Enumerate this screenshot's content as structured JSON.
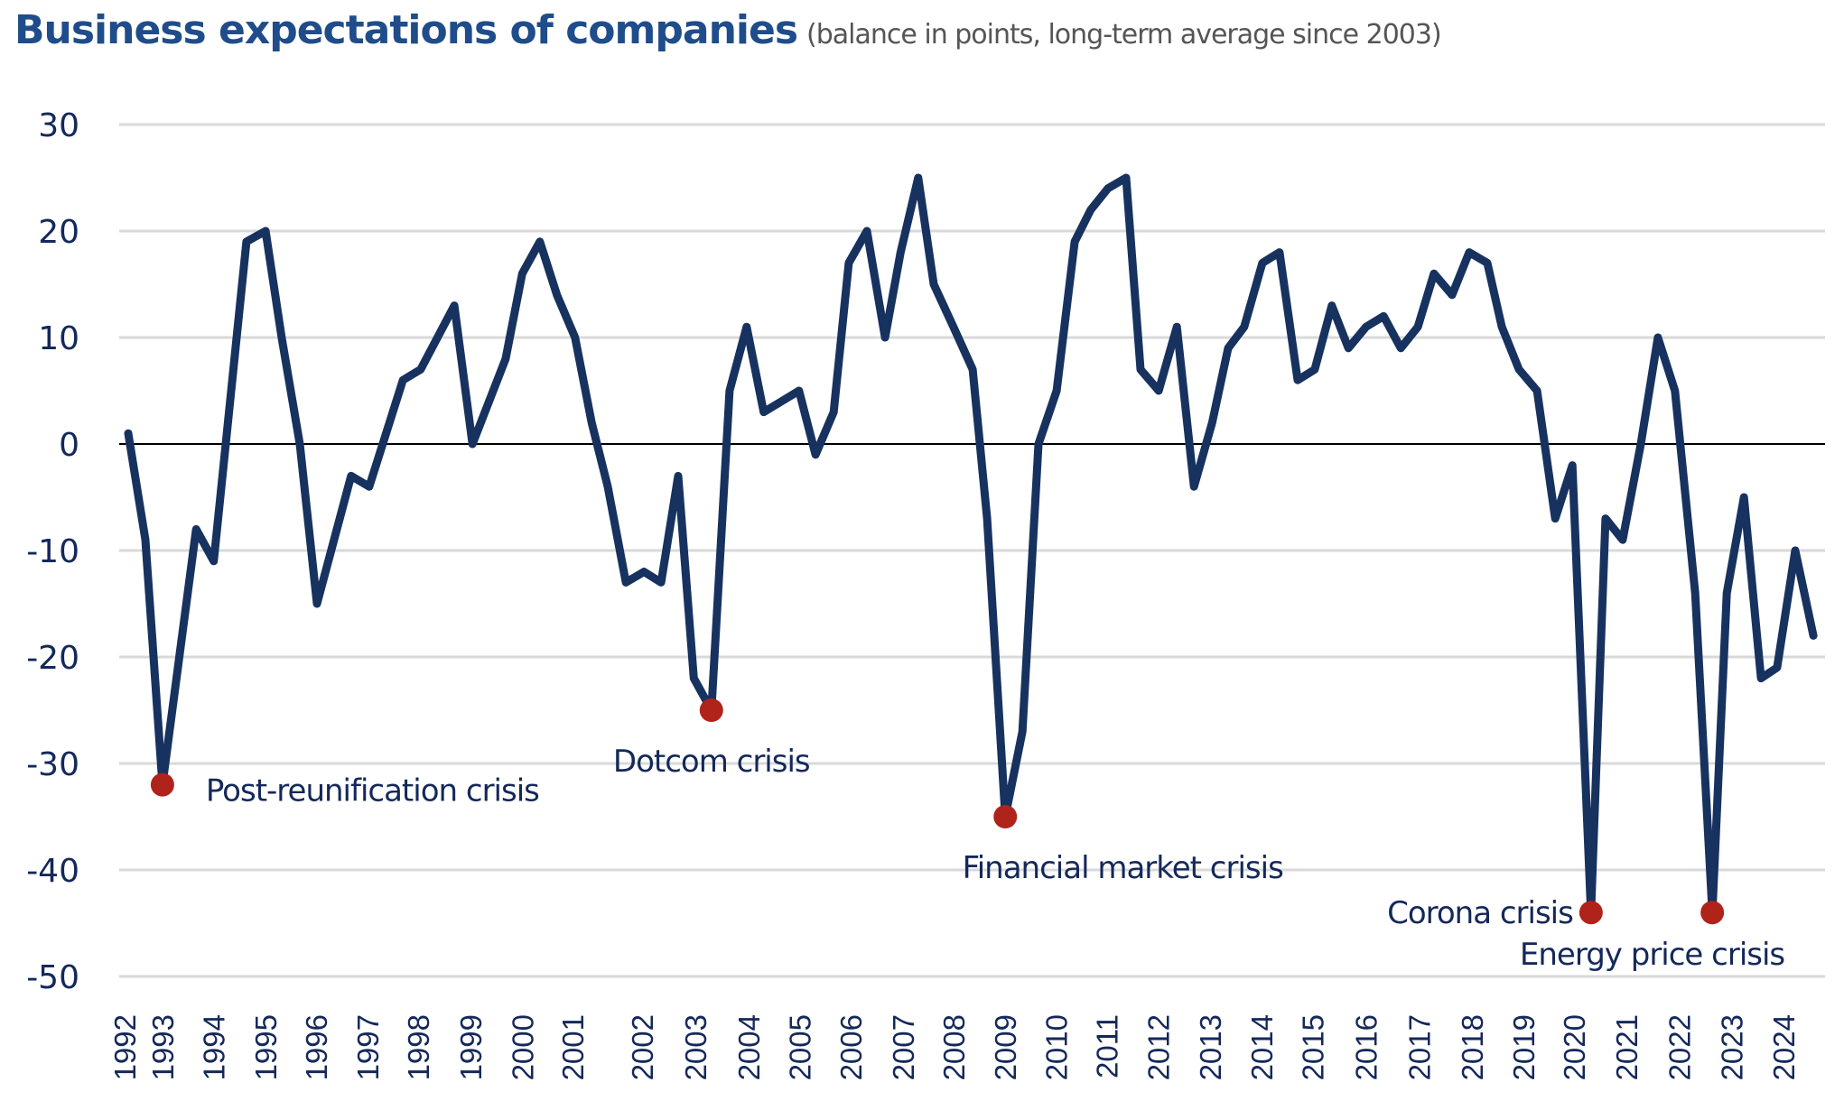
{
  "chart_data": {
    "type": "line",
    "title": "Business expectations of companies",
    "subtitle": "(balance in points, long-term average since 2003)",
    "xlabel": "",
    "ylabel": "",
    "ylim": [
      -50,
      30
    ],
    "yticks": [
      30,
      20,
      10,
      0,
      -10,
      -20,
      -30,
      -40,
      -50
    ],
    "grid": true,
    "legend": "none",
    "colors": {
      "line": "#17325f",
      "marker": "#b0231a",
      "grid": "#d9d9d9",
      "zero_line": "#000000",
      "title": "#1f4c8a",
      "text": "#14285a"
    },
    "xticks": [
      {
        "label": "1992",
        "t": 1992.0
      },
      {
        "label": "1993",
        "t": 1992.73
      },
      {
        "label": "1994",
        "t": 1993.72
      },
      {
        "label": "1995",
        "t": 1994.72
      },
      {
        "label": "1996",
        "t": 1995.69
      },
      {
        "label": "1997",
        "t": 1996.69
      },
      {
        "label": "1998",
        "t": 1997.66
      },
      {
        "label": "1999",
        "t": 1998.67
      },
      {
        "label": "2000",
        "t": 1999.67
      },
      {
        "label": "2001",
        "t": 2000.64
      },
      {
        "label": "2002",
        "t": 2001.98
      },
      {
        "label": "2003",
        "t": 2003.01
      },
      {
        "label": "2004",
        "t": 2004.04
      },
      {
        "label": "2005",
        "t": 2005.02
      },
      {
        "label": "2006",
        "t": 2006.01
      },
      {
        "label": "2007",
        "t": 2007.02
      },
      {
        "label": "2008",
        "t": 2007.99
      },
      {
        "label": "2009",
        "t": 2008.99
      },
      {
        "label": "2010",
        "t": 2009.97
      },
      {
        "label": "2011",
        "t": 2010.95
      },
      {
        "label": "2012",
        "t": 2011.94
      },
      {
        "label": "2013",
        "t": 2012.94
      },
      {
        "label": "2014",
        "t": 2013.93
      },
      {
        "label": "2015",
        "t": 2014.92
      },
      {
        "label": "2016",
        "t": 2015.95
      },
      {
        "label": "2017",
        "t": 2016.97
      },
      {
        "label": "2018",
        "t": 2017.99
      },
      {
        "label": "2019",
        "t": 2018.99
      },
      {
        "label": "2020",
        "t": 2019.96
      },
      {
        "label": "2021",
        "t": 2020.97
      },
      {
        "label": "2022",
        "t": 2021.99
      },
      {
        "label": "2023",
        "t": 2023.0
      },
      {
        "label": "2024",
        "t": 2024.0
      }
    ],
    "series": [
      {
        "name": "Business expectations",
        "points": [
          [
            1992.07,
            1
          ],
          [
            1992.4,
            -9
          ],
          [
            1992.73,
            -32
          ],
          [
            1993.38,
            -8
          ],
          [
            1993.72,
            -11
          ],
          [
            1994.35,
            19
          ],
          [
            1994.72,
            20
          ],
          [
            1995.03,
            10
          ],
          [
            1995.38,
            0
          ],
          [
            1995.71,
            -15
          ],
          [
            1996.37,
            -3
          ],
          [
            1996.72,
            -4
          ],
          [
            1997.37,
            6
          ],
          [
            1997.71,
            7
          ],
          [
            1998.36,
            13
          ],
          [
            1998.71,
            0
          ],
          [
            1999.35,
            8
          ],
          [
            1999.67,
            16
          ],
          [
            2000.01,
            19
          ],
          [
            2000.34,
            14
          ],
          [
            2000.69,
            10
          ],
          [
            2001.01,
            2
          ],
          [
            2001.32,
            -4
          ],
          [
            2001.67,
            -13
          ],
          [
            2002.02,
            -12
          ],
          [
            2002.35,
            -13
          ],
          [
            2002.68,
            -3
          ],
          [
            2002.98,
            -22
          ],
          [
            2003.32,
            -25
          ],
          [
            2003.67,
            5
          ],
          [
            2004.0,
            11
          ],
          [
            2004.33,
            3
          ],
          [
            2004.67,
            4
          ],
          [
            2005.01,
            5
          ],
          [
            2005.33,
            -1
          ],
          [
            2005.68,
            3
          ],
          [
            2005.97,
            17
          ],
          [
            2006.32,
            20
          ],
          [
            2006.67,
            10
          ],
          [
            2006.97,
            18
          ],
          [
            2007.31,
            25
          ],
          [
            2007.61,
            15
          ],
          [
            2007.99,
            11
          ],
          [
            2008.36,
            7
          ],
          [
            2008.64,
            -7
          ],
          [
            2008.99,
            -35
          ],
          [
            2009.32,
            -27
          ],
          [
            2009.63,
            0
          ],
          [
            2009.98,
            5
          ],
          [
            2010.33,
            19
          ],
          [
            2010.64,
            22
          ],
          [
            2010.97,
            24
          ],
          [
            2011.32,
            25
          ],
          [
            2011.6,
            7
          ],
          [
            2011.95,
            5
          ],
          [
            2012.3,
            11
          ],
          [
            2012.63,
            -4
          ],
          [
            2012.98,
            2
          ],
          [
            2013.29,
            9
          ],
          [
            2013.6,
            11
          ],
          [
            2013.95,
            17
          ],
          [
            2014.28,
            18
          ],
          [
            2014.63,
            6
          ],
          [
            2014.96,
            7
          ],
          [
            2015.29,
            13
          ],
          [
            2015.61,
            9
          ],
          [
            2015.95,
            11
          ],
          [
            2016.29,
            12
          ],
          [
            2016.62,
            9
          ],
          [
            2016.95,
            11
          ],
          [
            2017.26,
            16
          ],
          [
            2017.61,
            14
          ],
          [
            2017.94,
            18
          ],
          [
            2018.29,
            17
          ],
          [
            2018.57,
            11
          ],
          [
            2018.9,
            7
          ],
          [
            2019.25,
            5
          ],
          [
            2019.6,
            -7
          ],
          [
            2019.93,
            -2
          ],
          [
            2020.29,
            -44
          ],
          [
            2020.57,
            -7
          ],
          [
            2020.9,
            -9
          ],
          [
            2021.25,
            0
          ],
          [
            2021.58,
            10
          ],
          [
            2021.91,
            5
          ],
          [
            2022.3,
            -14
          ],
          [
            2022.63,
            -44
          ],
          [
            2022.91,
            -14
          ],
          [
            2023.24,
            -5
          ],
          [
            2023.57,
            -22
          ],
          [
            2023.88,
            -21
          ],
          [
            2024.23,
            -10
          ],
          [
            2024.58,
            -18
          ]
        ]
      }
    ],
    "annotations": [
      {
        "label": "Post-reunification crisis",
        "t": 1992.73,
        "value": -32,
        "placement": "below-right"
      },
      {
        "label": "Dotcom crisis",
        "t": 2003.32,
        "value": -25,
        "placement": "below"
      },
      {
        "label": "Financial market crisis",
        "t": 2008.99,
        "value": -35,
        "placement": "below"
      },
      {
        "label": "Corona crisis",
        "t": 2020.29,
        "value": -44,
        "placement": "left"
      },
      {
        "label": "Energy price crisis",
        "t": 2022.63,
        "value": -44,
        "placement": "below-left"
      }
    ]
  }
}
